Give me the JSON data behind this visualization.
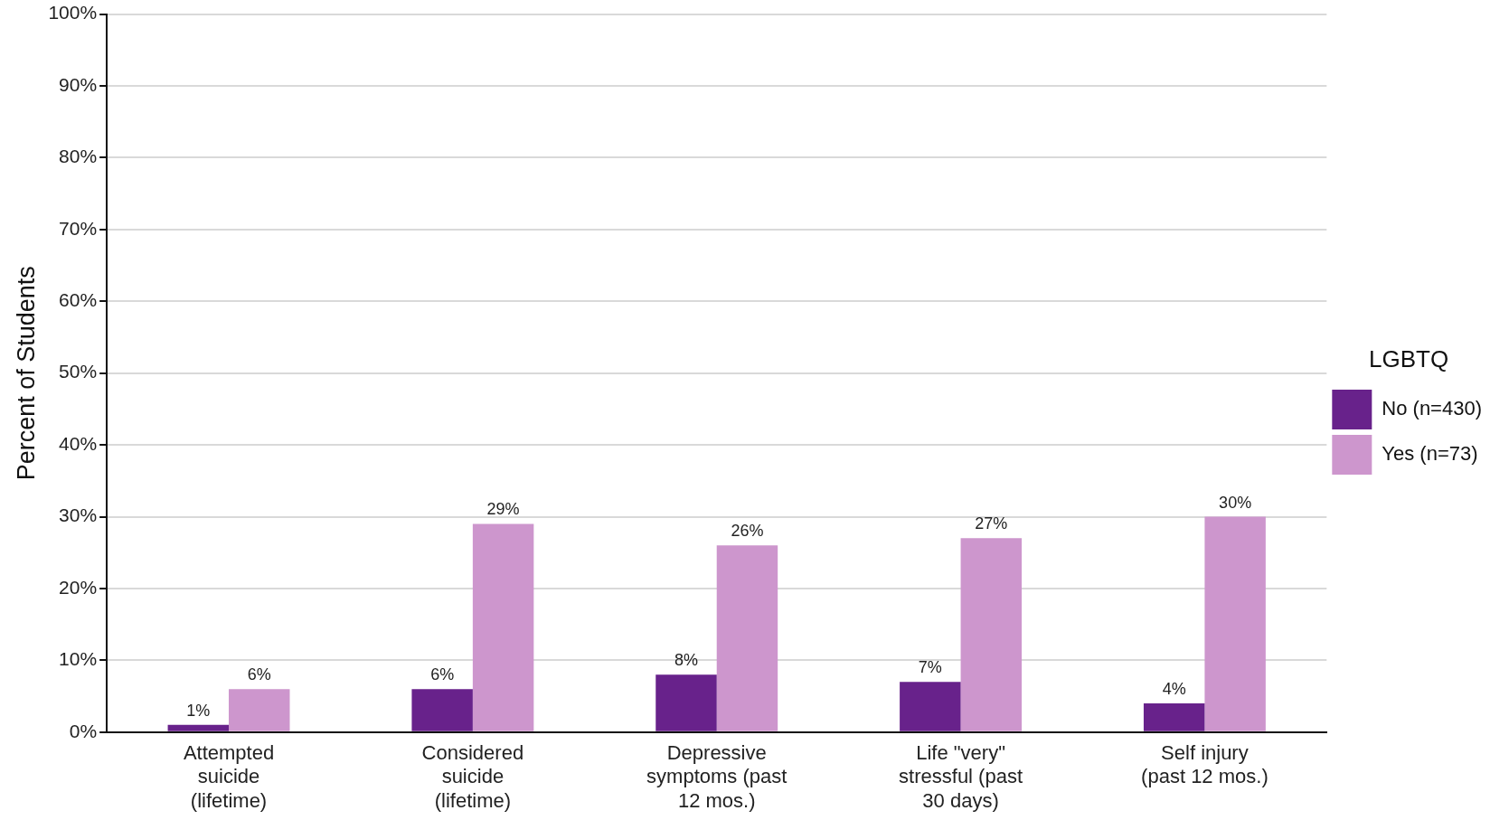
{
  "chart_data": {
    "type": "bar",
    "ylabel": "Percent of Students",
    "legend_title": "LGBTQ",
    "legend": "right",
    "grid": "y",
    "categories": [
      "Attempted suicide (lifetime)",
      "Considered suicide (lifetime)",
      "Depressive symptoms (past 12 mos.)",
      "Life \"very\" stressful (past 30 days)",
      "Self injury (past 12 mos.)"
    ],
    "series": [
      {
        "name": "No (n=430)",
        "color": "#68228b",
        "values": [
          1,
          6,
          8,
          7,
          4
        ],
        "value_labels": [
          "1%",
          "6%",
          "8%",
          "7%",
          "4%"
        ]
      },
      {
        "name": "Yes (n=73)",
        "color": "#cd96cd",
        "values": [
          6,
          29,
          26,
          27,
          30
        ],
        "value_labels": [
          "6%",
          "29%",
          "26%",
          "27%",
          "30%"
        ]
      }
    ],
    "ylim": [
      0,
      100
    ],
    "yticks": [
      {
        "value": 0,
        "label": "0%"
      },
      {
        "value": 10,
        "label": "10%"
      },
      {
        "value": 20,
        "label": "20%"
      },
      {
        "value": 30,
        "label": "30%"
      },
      {
        "value": 40,
        "label": "40%"
      },
      {
        "value": 50,
        "label": "50%"
      },
      {
        "value": 60,
        "label": "60%"
      },
      {
        "value": 70,
        "label": "70%"
      },
      {
        "value": 80,
        "label": "80%"
      },
      {
        "value": 90,
        "label": "90%"
      },
      {
        "value": 100,
        "label": "100%"
      }
    ]
  }
}
